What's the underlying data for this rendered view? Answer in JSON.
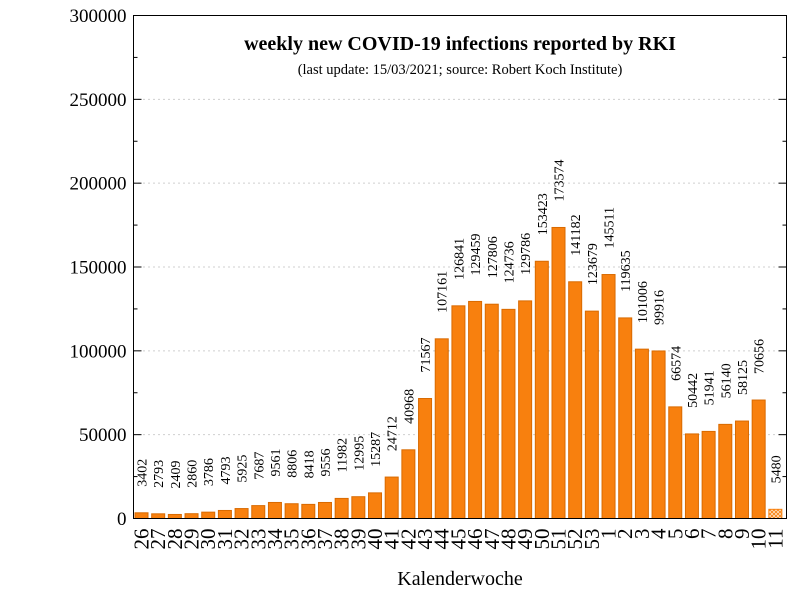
{
  "chart_data": {
    "type": "bar",
    "title": "weekly new COVID-19 infections reported by RKI",
    "subtitle": "(last update: 15/03/2021; source: Robert Koch Institute)",
    "xlabel": "Kalenderwoche",
    "categories": [
      "26",
      "27",
      "28",
      "29",
      "30",
      "31",
      "32",
      "33",
      "34",
      "35",
      "36",
      "37",
      "38",
      "39",
      "40",
      "41",
      "42",
      "43",
      "44",
      "45",
      "46",
      "47",
      "48",
      "49",
      "50",
      "51",
      "52",
      "53",
      "1",
      "2",
      "3",
      "4",
      "5",
      "6",
      "7",
      "8",
      "9",
      "10",
      "11"
    ],
    "values": [
      3402,
      2793,
      2409,
      2860,
      3786,
      4793,
      5925,
      7687,
      9561,
      8806,
      8418,
      9556,
      11982,
      12995,
      15287,
      24712,
      40968,
      71567,
      107161,
      126841,
      129459,
      127806,
      124736,
      129786,
      153423,
      173574,
      141182,
      123679,
      145511,
      119635,
      101006,
      99916,
      66574,
      50442,
      51941,
      56140,
      58125,
      70656,
      5480
    ],
    "ylim": [
      0,
      300000
    ],
    "yticks": [
      0,
      50000,
      100000,
      150000,
      200000,
      250000,
      300000
    ],
    "grid_y": true,
    "bar_color": "#f8800e",
    "last_bar_hatched": true
  }
}
